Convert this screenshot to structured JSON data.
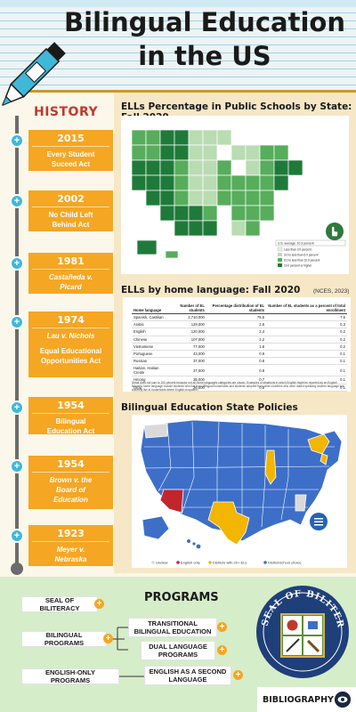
{
  "header": {
    "title_line1": "Bilingual Education",
    "title_line2": "in the US"
  },
  "history": {
    "title": "HISTORY",
    "events": [
      {
        "year": "2015",
        "lines": [
          "Every Student",
          "Suceed Act"
        ],
        "italic": false
      },
      {
        "year": "2002",
        "lines": [
          "No Child Left",
          "Behind Act"
        ],
        "italic": false
      },
      {
        "year": "1981",
        "lines": [
          "Castañeda v.",
          "Picard"
        ],
        "italic": true
      },
      {
        "year": "1974",
        "lines": [
          "Lau v. Nichols"
        ],
        "italic": true,
        "extra": [
          "Equal Educational",
          "Opportunities Act"
        ]
      },
      {
        "year": "1954",
        "lines": [
          "Bilingual",
          "Education Act"
        ],
        "italic": false
      },
      {
        "year": "1954",
        "lines": [
          "Brown v. the",
          "Board of",
          "Education"
        ],
        "italic": true
      },
      {
        "year": "1923",
        "lines": [
          "Meyer v.",
          "Nebraska"
        ],
        "italic": true
      }
    ]
  },
  "sections": {
    "map1_title": "ELLs Percentage in Public Schools by State: Fall 2020",
    "table_title": "ELLs by home language: Fall 2020",
    "citation": "(NCES, 2023)",
    "map2_title": "Bilingual Education State Policies"
  },
  "map1": {
    "legend": [
      "U.S. average: 10.3 percent",
      "Less than 3.0 percent",
      "3.0 to less than 6.0 percent",
      "6.0 to less than 10.0 percent",
      "10.0 percent or higher"
    ],
    "colors": {
      "very_light": "#e8f3e4",
      "light": "#b9dcb2",
      "mid": "#57ad5c",
      "dark": "#1f7a3a"
    }
  },
  "table": {
    "headers": [
      "Home language",
      "Number of EL students",
      "Percentage distribution of EL students",
      "Number of EL students as a percent of total enrollment"
    ],
    "rows": [
      [
        "Spanish, Castilian",
        "3,710,000",
        "75.5",
        "7.6"
      ],
      [
        "Arabic",
        "129,000",
        "2.6",
        "0.3"
      ],
      [
        "English",
        "120,000",
        "2.4",
        "0.2"
      ],
      [
        "Chinese",
        "107,000",
        "2.2",
        "0.2"
      ],
      [
        "Vietnamese",
        "77,000",
        "1.6",
        "0.2"
      ],
      [
        "Portuguese",
        "43,000",
        "0.9",
        "0.1"
      ],
      [
        "Russian",
        "37,000",
        "0.8",
        "0.1"
      ],
      [
        "Haitian, Haitian Creole",
        "37,000",
        "0.8",
        "0.1"
      ],
      [
        "Hmong",
        "35,000",
        "0.7",
        "0.1"
      ],
      [
        "Urdu",
        "26,000",
        "0.5",
        "0.1"
      ]
    ],
    "notes": "Detail does not sum to 100 percent because not all home languages categories are shown. Examples of situations in which English might be reported as an English learner's home language include students who live in multilingual households and students adopted from other countries who were raised speaking another language but currently live in households where English is spoken."
  },
  "map2": {
    "legend": [
      "Unclear",
      "English only",
      "Districts with 20+ ELs",
      "District/school choice"
    ],
    "colors": {
      "unclear": "#d9d9d9",
      "english_only": "#c0262d",
      "districts": "#f2b500",
      "choice": "#3d6fc9"
    }
  },
  "programs": {
    "title": "PROGRAMS",
    "left": [
      "SEAL OF BILITERACY",
      "BILINGUAL PROGRAMS",
      "ENGLISH-ONLY PROGRAMS"
    ],
    "right": [
      "TRANSITIONAL BILINGUAL EDUCATION",
      "DUAL LANGUAGE PROGRAMS",
      "ENGLISH AS A SECOND LANGUAGE"
    ],
    "seal_text": "SEAL OF BILITERACY",
    "bibliography": "BIBLIOGRAPHY"
  }
}
